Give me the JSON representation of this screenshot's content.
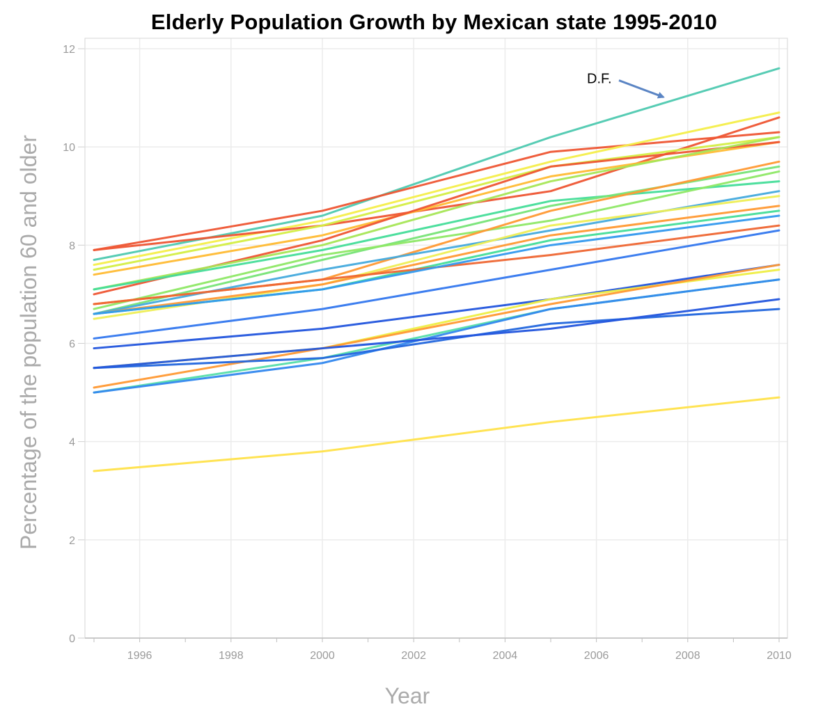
{
  "chart_data": {
    "type": "line",
    "title": "Elderly Population Growth by Mexican state 1995-2010",
    "xlabel": "Year",
    "ylabel": "Percentage of the population 60 and older",
    "x": [
      1995,
      2000,
      2005,
      2010
    ],
    "xlim": [
      1995,
      2010
    ],
    "ylim": [
      0,
      12
    ],
    "xticks": [
      "1996",
      "1998",
      "2000",
      "2002",
      "2004",
      "2006",
      "2008",
      "2010"
    ],
    "yticks": [
      "0",
      "2",
      "4",
      "6",
      "8",
      "10",
      "12"
    ],
    "grid": true,
    "legend": "none",
    "annotations": [
      {
        "text": "D.F.",
        "points_to": {
          "x": 2007.5,
          "y": 11.0
        }
      }
    ],
    "series": [
      {
        "values": [
          7.7,
          8.6,
          10.2,
          11.6
        ],
        "color": "#4ec9b0"
      },
      {
        "values": [
          7.9,
          8.7,
          9.9,
          10.3
        ],
        "color": "#ee5533"
      },
      {
        "values": [
          7.6,
          8.5,
          9.7,
          10.7
        ],
        "color": "#f4ee4a"
      },
      {
        "values": [
          7.9,
          8.4,
          9.1,
          10.6
        ],
        "color": "#ee5533"
      },
      {
        "values": [
          7.5,
          8.4,
          9.6,
          10.2
        ],
        "color": "#d4ee44"
      },
      {
        "values": [
          7.4,
          8.2,
          9.4,
          10.1
        ],
        "color": "#ffbb33"
      },
      {
        "values": [
          7.0,
          8.1,
          9.6,
          10.1
        ],
        "color": "#ee5533"
      },
      {
        "values": [
          7.1,
          8.0,
          9.3,
          10.2
        ],
        "color": "#a6e656"
      },
      {
        "values": [
          7.1,
          7.9,
          8.9,
          9.3
        ],
        "color": "#44dd99"
      },
      {
        "values": [
          6.6,
          7.7,
          8.8,
          9.6
        ],
        "color": "#77e477"
      },
      {
        "values": [
          6.7,
          7.8,
          8.5,
          9.5
        ],
        "color": "#8ee866"
      },
      {
        "values": [
          6.8,
          7.3,
          8.7,
          9.7
        ],
        "color": "#ff9933"
      },
      {
        "values": [
          6.6,
          7.5,
          8.3,
          9.1
        ],
        "color": "#44aadd"
      },
      {
        "values": [
          6.5,
          7.2,
          8.4,
          9.0
        ],
        "color": "#eeee55"
      },
      {
        "values": [
          6.6,
          7.2,
          8.2,
          8.8
        ],
        "color": "#ff9933"
      },
      {
        "values": [
          6.6,
          7.1,
          8.1,
          8.7
        ],
        "color": "#44dd99"
      },
      {
        "values": [
          6.8,
          7.3,
          7.8,
          8.4
        ],
        "color": "#ee6633"
      },
      {
        "values": [
          6.6,
          7.1,
          8.0,
          8.6
        ],
        "color": "#3399ee"
      },
      {
        "values": [
          6.1,
          6.7,
          7.5,
          8.3
        ],
        "color": "#3377ee"
      },
      {
        "values": [
          5.9,
          6.3,
          6.9,
          7.6
        ],
        "color": "#2255dd"
      },
      {
        "values": [
          5.5,
          5.9,
          6.9,
          7.5
        ],
        "color": "#eeee44"
      },
      {
        "values": [
          5.1,
          5.9,
          6.8,
          7.6
        ],
        "color": "#ff9933"
      },
      {
        "values": [
          5.0,
          5.7,
          6.7,
          7.3
        ],
        "color": "#55ddaa"
      },
      {
        "values": [
          5.0,
          5.6,
          6.7,
          7.3
        ],
        "color": "#3388ee"
      },
      {
        "values": [
          5.5,
          5.7,
          6.4,
          6.7
        ],
        "color": "#2266dd"
      },
      {
        "values": [
          5.5,
          5.9,
          6.3,
          6.9
        ],
        "color": "#2255dd"
      },
      {
        "values": [
          3.4,
          3.8,
          4.4,
          4.9
        ],
        "color": "#ffe24a"
      }
    ]
  }
}
